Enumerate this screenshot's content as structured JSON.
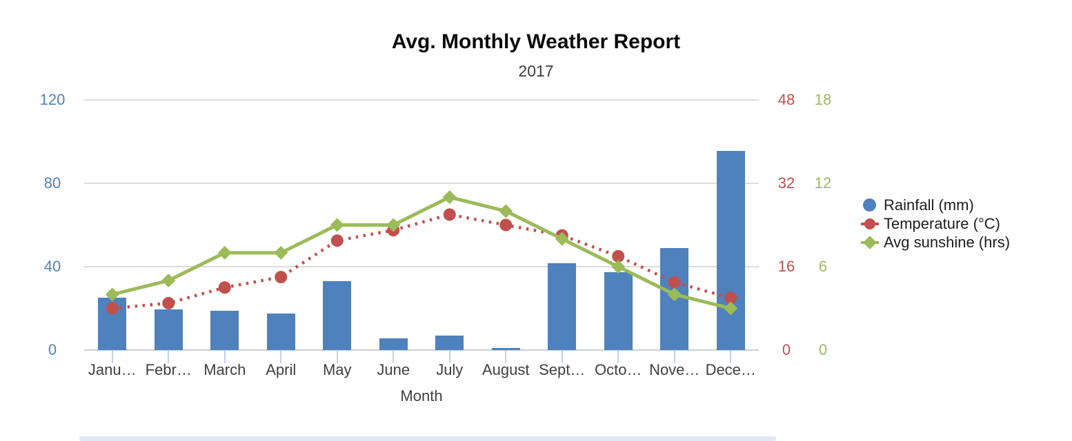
{
  "title": "Avg. Monthly Weather Report",
  "subtitle": "2017",
  "chart_data": {
    "type": "combo",
    "title": "Avg. Monthly Weather Report",
    "subtitle": "2017",
    "xlabel": "Month",
    "grid": true,
    "legend_position": "right",
    "categories": [
      "January",
      "February",
      "March",
      "April",
      "May",
      "June",
      "July",
      "August",
      "September",
      "October",
      "November",
      "December"
    ],
    "x_tick_labels": [
      "Janu…",
      "Febr…",
      "March",
      "April",
      "May",
      "June",
      "July",
      "August",
      "Sept…",
      "Octo…",
      "Nove…",
      "Dece…"
    ],
    "series": [
      {
        "name": "Rainfall (mm)",
        "type": "bar",
        "color": "#4F81BD",
        "axis": "left",
        "marker": "none",
        "values": [
          25,
          19.5,
          19,
          17.5,
          33,
          5.5,
          7,
          1,
          41.5,
          37.5,
          49,
          95.5
        ]
      },
      {
        "name": "Temperature (°C)",
        "type": "line",
        "line_style": "dotted",
        "color": "#C0504D",
        "axis": "right1",
        "marker": "circle",
        "values": [
          8,
          9,
          12,
          14,
          21,
          23,
          26,
          24,
          22,
          18,
          13,
          10
        ]
      },
      {
        "name": "Avg sunshine (hrs)",
        "type": "line",
        "line_style": "solid",
        "color": "#9BBB59",
        "axis": "right2",
        "marker": "diamond",
        "values": [
          4,
          5,
          7,
          7,
          9,
          9,
          11,
          10,
          8,
          6,
          4,
          3
        ]
      }
    ],
    "axes": {
      "left": {
        "ticks": [
          0,
          40,
          80,
          120
        ],
        "max": 120,
        "color": "#4F81BD"
      },
      "right1": {
        "ticks": [
          0,
          16,
          32,
          48
        ],
        "max": 48,
        "color": "#C0504D"
      },
      "right2": {
        "ticks": [
          0,
          6,
          12,
          18
        ],
        "max": 18,
        "color": "#9BBB59"
      }
    }
  },
  "legend": {
    "items": [
      {
        "label": "Rainfall (mm)",
        "color": "#4F81BD",
        "shape": "circle"
      },
      {
        "label": "Temperature (°C)",
        "color": "#C0504D",
        "shape": "circle-line"
      },
      {
        "label": "Avg sunshine (hrs)",
        "color": "#9BBB59",
        "shape": "diamond-line"
      }
    ]
  }
}
